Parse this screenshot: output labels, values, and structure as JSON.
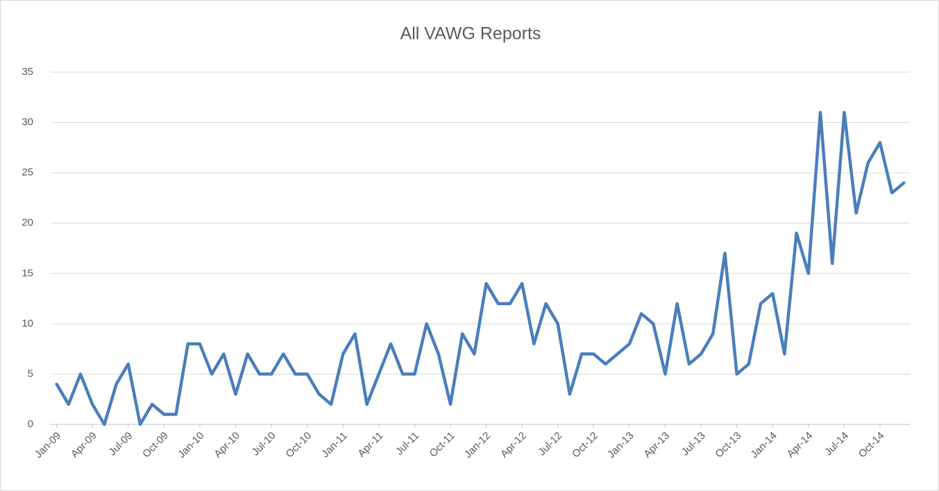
{
  "chart_data": {
    "type": "line",
    "title": "All VAWG Reports",
    "categories": [
      "Jan-09",
      null,
      null,
      "Apr-09",
      null,
      null,
      "Jul-09",
      null,
      null,
      "Oct-09",
      null,
      null,
      "Jan-10",
      null,
      null,
      "Apr-10",
      null,
      null,
      "Jul-10",
      null,
      null,
      "Oct-10",
      null,
      null,
      "Jan-11",
      null,
      null,
      "Apr-11",
      null,
      null,
      "Jul-11",
      null,
      null,
      "Oct-11",
      null,
      null,
      "Jan-12",
      null,
      null,
      "Apr-12",
      null,
      null,
      "Jul-12",
      null,
      null,
      "Oct-12",
      null,
      null,
      "Jan-13",
      null,
      null,
      "Apr-13",
      null,
      null,
      "Jul-13",
      null,
      null,
      "Oct-13",
      null,
      null,
      "Jan-14",
      null,
      null,
      "Apr-14",
      null,
      null,
      "Jul-14",
      null,
      null,
      "Oct-14",
      null,
      null
    ],
    "series": [
      {
        "color": "#4a7ebb",
        "values": [
          4,
          2,
          5,
          2,
          0,
          4,
          6,
          0,
          2,
          1,
          1,
          8,
          8,
          5,
          7,
          3,
          7,
          5,
          5,
          7,
          5,
          5,
          3,
          2,
          7,
          9,
          2,
          5,
          8,
          5,
          5,
          10,
          7,
          2,
          9,
          7,
          14,
          12,
          12,
          14,
          8,
          12,
          10,
          3,
          7,
          7,
          6,
          7,
          8,
          11,
          10,
          5,
          12,
          6,
          7,
          9,
          17,
          5,
          6,
          12,
          13,
          7,
          19,
          15,
          31,
          16,
          31,
          21,
          26,
          28,
          23,
          24
        ]
      }
    ],
    "ylim": [
      0,
      35
    ],
    "yticks": [
      0,
      5,
      10,
      15,
      20,
      25,
      30,
      35
    ],
    "grid": true
  }
}
